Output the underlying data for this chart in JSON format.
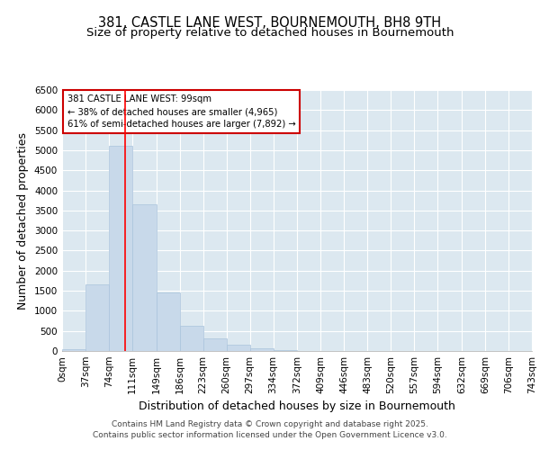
{
  "title_line1": "381, CASTLE LANE WEST, BOURNEMOUTH, BH8 9TH",
  "title_line2": "Size of property relative to detached houses in Bournemouth",
  "xlabel": "Distribution of detached houses by size in Bournemouth",
  "ylabel": "Number of detached properties",
  "bins": [
    0,
    37,
    74,
    111,
    149,
    186,
    223,
    260,
    297,
    334,
    372,
    409,
    446,
    483,
    520,
    557,
    594,
    632,
    669,
    706,
    743
  ],
  "bin_labels": [
    "0sqm",
    "37sqm",
    "74sqm",
    "111sqm",
    "149sqm",
    "186sqm",
    "223sqm",
    "260sqm",
    "297sqm",
    "334sqm",
    "372sqm",
    "409sqm",
    "446sqm",
    "483sqm",
    "520sqm",
    "557sqm",
    "594sqm",
    "632sqm",
    "669sqm",
    "706sqm",
    "743sqm"
  ],
  "bar_heights": [
    50,
    1650,
    5100,
    3650,
    1450,
    620,
    320,
    150,
    60,
    30,
    10,
    5,
    0,
    0,
    0,
    0,
    0,
    0,
    0,
    0
  ],
  "bar_color": "#c8d9ea",
  "bar_edge_color": "#aac4dc",
  "red_line_x": 99,
  "ylim": [
    0,
    6500
  ],
  "yticks": [
    0,
    500,
    1000,
    1500,
    2000,
    2500,
    3000,
    3500,
    4000,
    4500,
    5000,
    5500,
    6000,
    6500
  ],
  "annotation_title": "381 CASTLE LANE WEST: 99sqm",
  "annotation_line1": "← 38% of detached houses are smaller (4,965)",
  "annotation_line2": "61% of semi-detached houses are larger (7,892) →",
  "annotation_box_facecolor": "#ffffff",
  "annotation_box_edgecolor": "#cc0000",
  "plot_bg_color": "#dce8f0",
  "fig_bg_color": "#ffffff",
  "grid_color": "#ffffff",
  "title_fontsize": 10.5,
  "subtitle_fontsize": 9.5,
  "axis_label_fontsize": 9,
  "tick_fontsize": 7.5,
  "footer_fontsize": 6.5,
  "footer_line1": "Contains HM Land Registry data © Crown copyright and database right 2025.",
  "footer_line2": "Contains public sector information licensed under the Open Government Licence v3.0."
}
